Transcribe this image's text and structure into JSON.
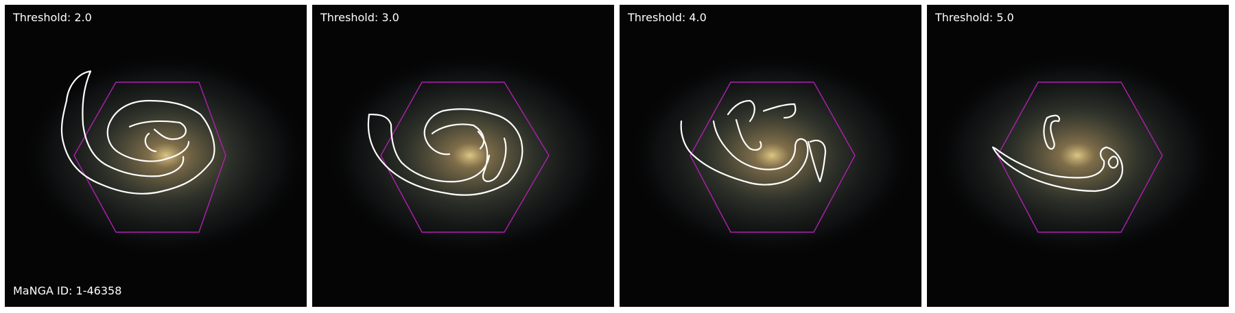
{
  "figure": {
    "manga_id_label": "MaNGA ID: 1-46358",
    "colors": {
      "hexagon": "#b020b0",
      "contour": "#ffffff",
      "background": "#050505",
      "galaxy_core": "#e8d08a"
    },
    "panels": [
      {
        "label": "Threshold: 2.0"
      },
      {
        "label": "Threshold: 3.0"
      },
      {
        "label": "Threshold: 4.0"
      },
      {
        "label": "Threshold: 5.0"
      }
    ]
  }
}
